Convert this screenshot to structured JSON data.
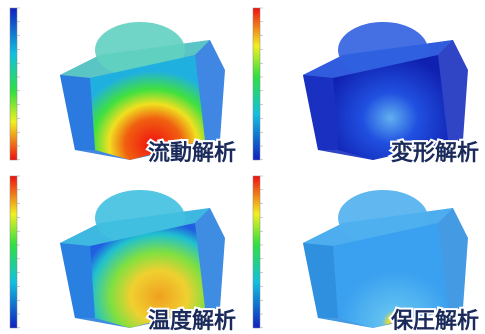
{
  "panels": [
    {
      "label": "流動解析"
    },
    {
      "label": "変形解析"
    },
    {
      "label": "温度解析"
    },
    {
      "label": "保圧解析"
    }
  ]
}
